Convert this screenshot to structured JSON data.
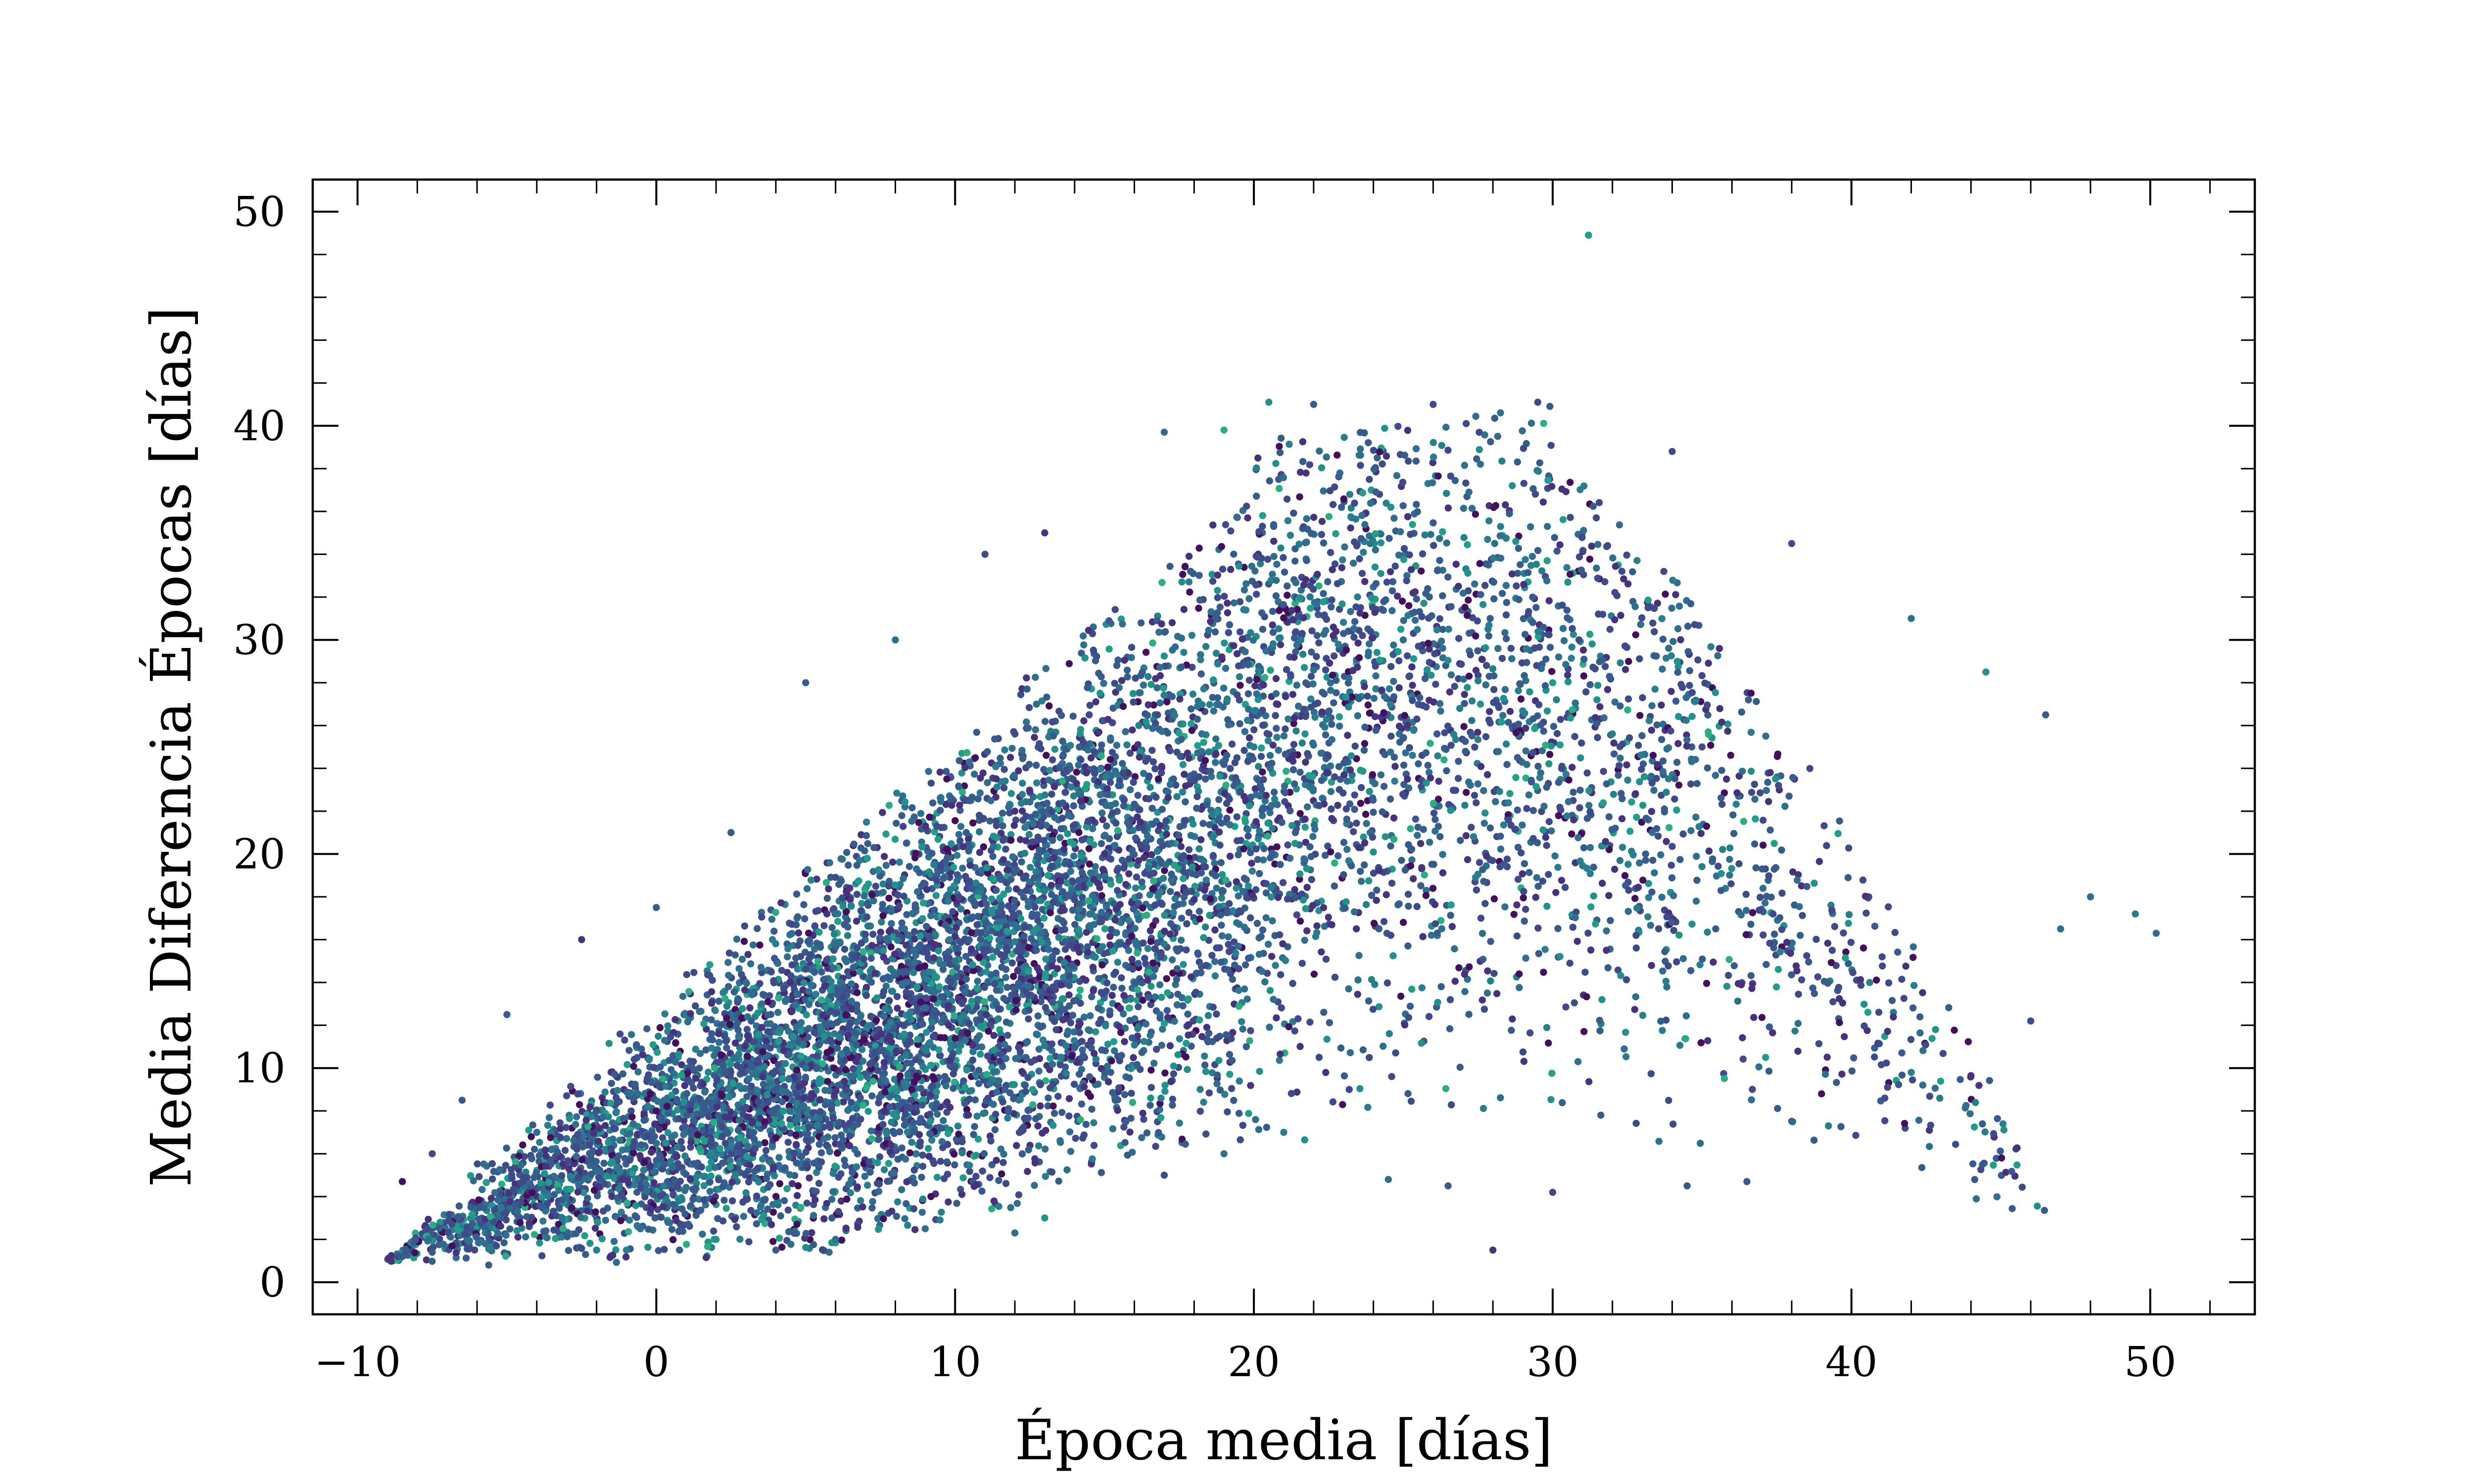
{
  "chart_data": {
    "type": "scatter",
    "title": "",
    "xlabel": "Época media [días]",
    "ylabel": "Media Diferencia Épocas [días]",
    "xlim": [
      -11.5,
      53.5
    ],
    "ylim": [
      -1.5,
      51.5
    ],
    "x_ticks": [
      -10,
      0,
      10,
      20,
      30,
      40,
      50
    ],
    "x_tick_labels": [
      "−10",
      "0",
      "10",
      "20",
      "30",
      "40",
      "50"
    ],
    "y_ticks": [
      0,
      10,
      20,
      30,
      40,
      50
    ],
    "y_tick_labels": [
      "0",
      "10",
      "20",
      "30",
      "40",
      "50"
    ],
    "grid": false,
    "legend": "none",
    "colormap": "viridis",
    "color_range": [
      "#3b1c5a",
      "#31688e",
      "#1f9e89",
      "#35b779"
    ],
    "point_count_estimate": 9000,
    "series": [
      {
        "values_sample": [
          [
            -8.5,
            1.2
          ],
          [
            -7.5,
            1.4
          ],
          [
            -8.5,
            4.7
          ],
          [
            -7.5,
            6.0
          ],
          [
            -6.5,
            8.5
          ],
          [
            -5.0,
            12.5
          ],
          [
            -2.5,
            16.0
          ],
          [
            0.0,
            17.5
          ],
          [
            2.5,
            21.0
          ],
          [
            5.0,
            28.0
          ],
          [
            8.0,
            30.0
          ],
          [
            11.0,
            34.0
          ],
          [
            13.0,
            35.0
          ],
          [
            17.0,
            39.7
          ],
          [
            19.0,
            39.8
          ],
          [
            20.5,
            41.1
          ],
          [
            22.0,
            41.0
          ],
          [
            26.0,
            41.0
          ],
          [
            29.5,
            41.1
          ],
          [
            31.2,
            48.9
          ],
          [
            34.0,
            38.8
          ],
          [
            38.0,
            34.5
          ],
          [
            42.0,
            31.0
          ],
          [
            44.5,
            28.5
          ],
          [
            46.5,
            26.5
          ],
          [
            48.0,
            18.0
          ],
          [
            49.5,
            17.2
          ],
          [
            50.2,
            16.3
          ],
          [
            47.0,
            16.5
          ],
          [
            46.0,
            12.2
          ],
          [
            42.0,
            9.8
          ],
          [
            39.0,
            8.8
          ],
          [
            36.5,
            4.7
          ],
          [
            34.5,
            4.5
          ],
          [
            30.0,
            4.2
          ],
          [
            28.0,
            1.5
          ],
          [
            26.5,
            4.5
          ],
          [
            24.5,
            4.8
          ],
          [
            21.0,
            7.0
          ],
          [
            19.0,
            6.0
          ],
          [
            17.0,
            5.0
          ],
          [
            13.0,
            3.0
          ],
          [
            12.0,
            2.3
          ],
          [
            9.0,
            2.5
          ],
          [
            6.0,
            2.0
          ],
          [
            4.0,
            1.5
          ],
          [
            2.0,
            2.0
          ],
          [
            -1.0,
            1.5
          ],
          [
            -2.0,
            1.5
          ],
          [
            10.0,
            15.0
          ],
          [
            15.0,
            20.0
          ],
          [
            20.0,
            25.0
          ],
          [
            25.0,
            30.0
          ],
          [
            30.0,
            28.0
          ],
          [
            35.0,
            25.0
          ],
          [
            5.0,
            10.0
          ],
          [
            0.0,
            8.0
          ],
          [
            -4.0,
            7.0
          ],
          [
            3.0,
            14.0
          ],
          [
            12.0,
            22.0
          ]
        ]
      }
    ]
  }
}
